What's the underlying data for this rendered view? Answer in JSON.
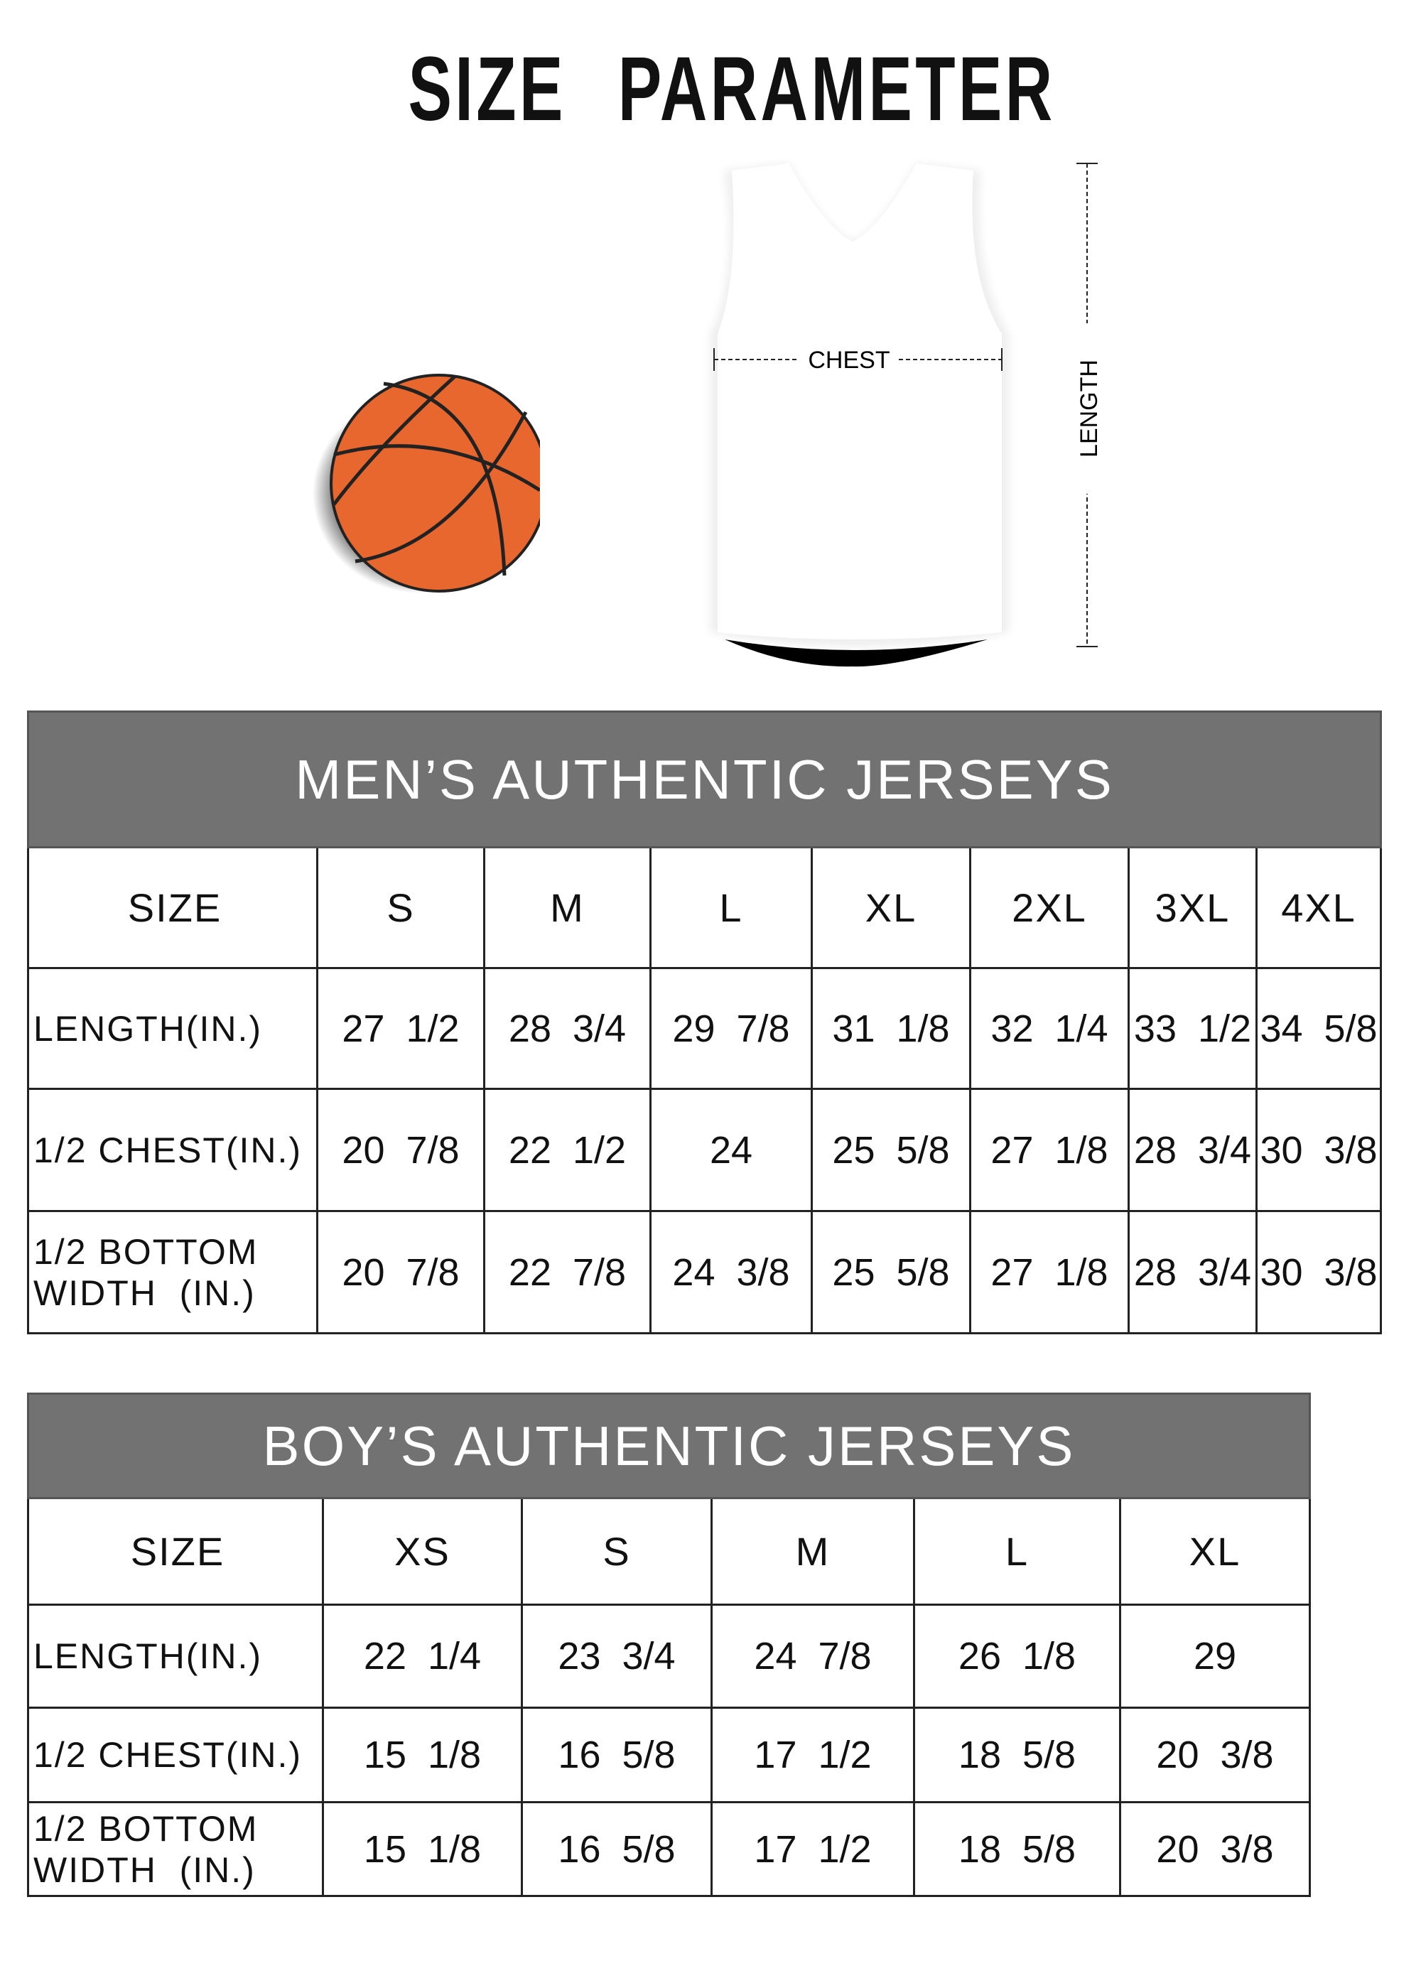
{
  "title": "SIZE PARAMETER",
  "diagram": {
    "chest_label": "CHEST",
    "length_label": "LENGTH"
  },
  "colors": {
    "header_bg": "#727272",
    "ball": "#e8672e"
  },
  "mens": {
    "title": "MEN’S AUTHENTIC JERSEYS",
    "header": [
      "SIZE",
      "S",
      "M",
      "L",
      "XL",
      "2XL",
      "3XL",
      "4XL"
    ],
    "rows": [
      [
        "LENGTH(IN.)",
        "27  1/2",
        "28  3/4",
        "29  7/8",
        "31  1/8",
        "32  1/4",
        "33  1/2",
        "34  5/8"
      ],
      [
        "1/2 CHEST(IN.)",
        "20  7/8",
        "22  1/2",
        "24",
        "25  5/8",
        "27  1/8",
        "28  3/4",
        "30  3/8"
      ],
      [
        "1/2 BOTTOM WIDTH  (IN.)",
        "20  7/8",
        "22  7/8",
        "24  3/8",
        "25  5/8",
        "27  1/8",
        "28  3/4",
        "30  3/8"
      ]
    ]
  },
  "boys": {
    "title": "BOY’S AUTHENTIC JERSEYS",
    "header": [
      "SIZE",
      "XS",
      "S",
      "M",
      "L",
      "XL"
    ],
    "rows": [
      [
        "LENGTH(IN.)",
        "22  1/4",
        "23  3/4",
        "24  7/8",
        "26  1/8",
        "29"
      ],
      [
        "1/2 CHEST(IN.)",
        "15  1/8",
        "16  5/8",
        "17  1/2",
        "18  5/8",
        "20  3/8"
      ],
      [
        "1/2 BOTTOM WIDTH  (IN.)",
        "15  1/8",
        "16  5/8",
        "17  1/2",
        "18  5/8",
        "20  3/8"
      ]
    ]
  }
}
